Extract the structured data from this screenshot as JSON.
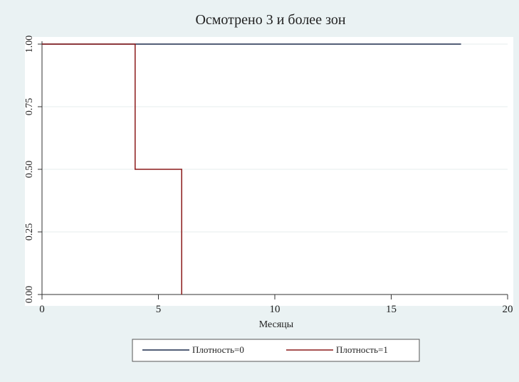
{
  "chart_data": {
    "type": "line",
    "step": true,
    "title": "Осмотрено 3 и более зон",
    "xlabel": "Месяцы",
    "ylabel": "",
    "xlim": [
      0,
      20
    ],
    "ylim": [
      0,
      1
    ],
    "x_ticks": [
      "0",
      "5",
      "10",
      "15",
      "20"
    ],
    "y_ticks": [
      "0.00",
      "0.25",
      "0.50",
      "0.75",
      "1.00"
    ],
    "grid": true,
    "legend_position": "bottom",
    "series": [
      {
        "name": "Плотность=0",
        "color": "#1a2a4a",
        "x": [
          0,
          18
        ],
        "y": [
          1.0,
          1.0
        ]
      },
      {
        "name": "Плотность=1",
        "color": "#8b1a1a",
        "x": [
          0,
          4,
          4,
          6,
          6
        ],
        "y": [
          1.0,
          1.0,
          0.5,
          0.5,
          0.0
        ]
      }
    ]
  }
}
